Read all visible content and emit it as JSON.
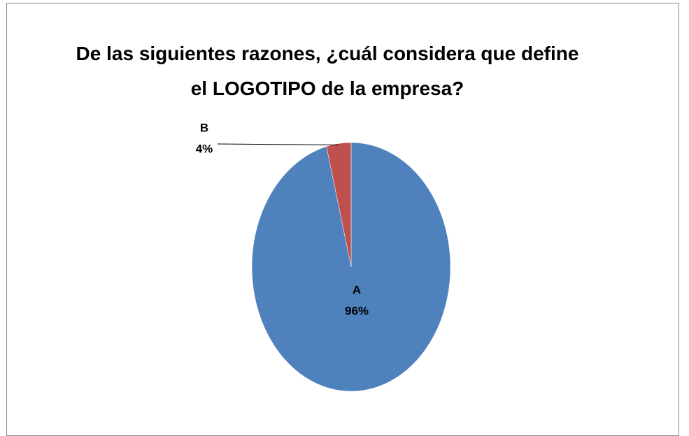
{
  "chart_data": {
    "type": "pie",
    "title": "De las siguientes razones, ¿cuál considera que define el LOGOTIPO de la empresa?",
    "categories": [
      "A",
      "B"
    ],
    "values": [
      96,
      4
    ],
    "value_labels": [
      "96%",
      "4%"
    ],
    "colors": [
      "#4f81bd",
      "#c0504d"
    ]
  }
}
